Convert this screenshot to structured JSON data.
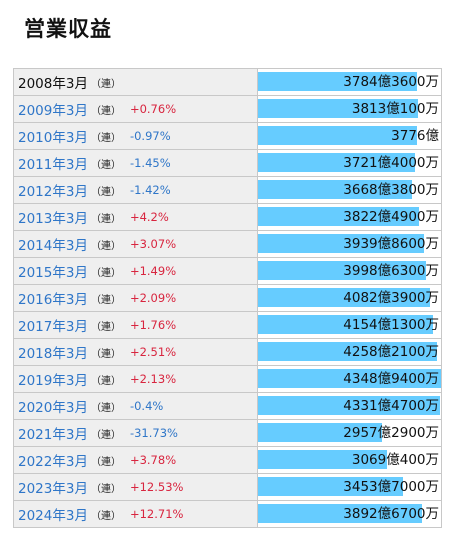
{
  "title": "営業収益",
  "ren_label": "（連）",
  "rows": [
    {
      "year": "2008年3月",
      "change": "",
      "value": "3784億3600万",
      "amount": 3784.36
    },
    {
      "year": "2009年3月",
      "change": "+0.76%",
      "value": "3813億100万",
      "amount": 3813.01
    },
    {
      "year": "2010年3月",
      "change": "-0.97%",
      "value": "3776億",
      "amount": 3776.0
    },
    {
      "year": "2011年3月",
      "change": "-1.45%",
      "value": "3721億4000万",
      "amount": 3721.4
    },
    {
      "year": "2012年3月",
      "change": "-1.42%",
      "value": "3668億3800万",
      "amount": 3668.38
    },
    {
      "year": "2013年3月",
      "change": "+4.2%",
      "value": "3822億4900万",
      "amount": 3822.49
    },
    {
      "year": "2014年3月",
      "change": "+3.07%",
      "value": "3939億8600万",
      "amount": 3939.86
    },
    {
      "year": "2015年3月",
      "change": "+1.49%",
      "value": "3998億6300万",
      "amount": 3998.63
    },
    {
      "year": "2016年3月",
      "change": "+2.09%",
      "value": "4082億3900万",
      "amount": 4082.39
    },
    {
      "year": "2017年3月",
      "change": "+1.76%",
      "value": "4154億1300万",
      "amount": 4154.13
    },
    {
      "year": "2018年3月",
      "change": "+2.51%",
      "value": "4258億2100万",
      "amount": 4258.21
    },
    {
      "year": "2019年3月",
      "change": "+2.13%",
      "value": "4348億9400万",
      "amount": 4348.94
    },
    {
      "year": "2020年3月",
      "change": "-0.4%",
      "value": "4331億4700万",
      "amount": 4331.47
    },
    {
      "year": "2021年3月",
      "change": "-31.73%",
      "value": "2957億2900万",
      "amount": 2957.29
    },
    {
      "year": "2022年3月",
      "change": "+3.78%",
      "value": "3069億400万",
      "amount": 3069.04
    },
    {
      "year": "2023年3月",
      "change": "+12.53%",
      "value": "3453億7000万",
      "amount": 3453.7
    },
    {
      "year": "2024年3月",
      "change": "+12.71%",
      "value": "3892億6700万",
      "amount": 3892.67
    }
  ],
  "colors": {
    "bar": "#66ccff",
    "year_link": "#2f76c8",
    "positive": "#d8253f",
    "negative": "#2f76c8"
  }
}
